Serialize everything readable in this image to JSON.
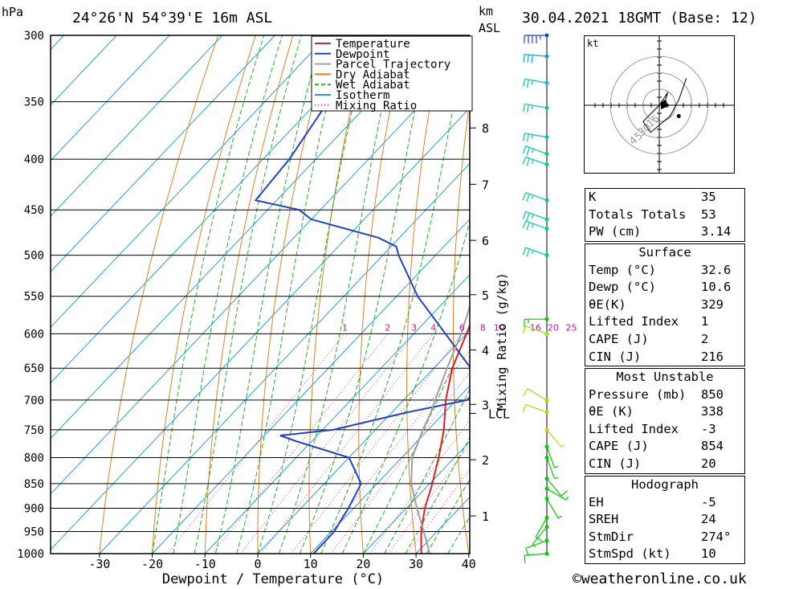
{
  "header": {
    "pressure_unit": "hPa",
    "height_unit_line1": "km",
    "height_unit_line2": "ASL",
    "location": "24°26'N  54°39'E  16m  ASL",
    "datetime": "30.04.2021  18GMT  (Base: 12)"
  },
  "chart_data": {
    "type": "line",
    "title": "",
    "xlabel": "Dewpoint / Temperature (°C)",
    "ylabel": "hPa",
    "xlim": [
      -40,
      40
    ],
    "ylim": [
      1000,
      300
    ],
    "y_scale": "log",
    "skew": "temperature isotherms skewed right with height",
    "grid": true,
    "x_ticks": [
      "-30",
      "-20",
      "-10",
      "0",
      "10",
      "20",
      "30",
      "40"
    ],
    "pressure_ticks": [
      "300",
      "350",
      "400",
      "450",
      "500",
      "550",
      "600",
      "650",
      "700",
      "750",
      "800",
      "850",
      "900",
      "950",
      "1000"
    ],
    "height_ticks": [
      {
        "p": 916,
        "label": "1"
      },
      {
        "p": 804,
        "label": "2"
      },
      {
        "p": 707,
        "label": "3"
      },
      {
        "p": 623,
        "label": "4"
      },
      {
        "p": 548,
        "label": "5"
      },
      {
        "p": 483,
        "label": "6"
      },
      {
        "p": 424,
        "label": "7"
      },
      {
        "p": 372,
        "label": "8"
      }
    ],
    "lcl": {
      "p": 722,
      "label": "LCL"
    },
    "mixing_ratio_label": "Mixing Ratio (g/kg)",
    "mixing_ratio_ticks": [
      "1",
      "2",
      "3",
      "4",
      "6",
      "8",
      "10",
      "16",
      "20",
      "25"
    ],
    "legend_placement": "top-right",
    "legend": [
      {
        "name": "Temperature",
        "color": "#e02020",
        "style": "solid"
      },
      {
        "name": "Dewpoint",
        "color": "#2040d0",
        "style": "solid"
      },
      {
        "name": "Parcel Trajectory",
        "color": "#a0a0a0",
        "style": "solid"
      },
      {
        "name": "Dry Adiabat",
        "color": "#e08020",
        "style": "solid"
      },
      {
        "name": "Wet Adiabat",
        "color": "#20b020",
        "style": "dashed"
      },
      {
        "name": "Isotherm",
        "color": "#20a0e0",
        "style": "solid"
      },
      {
        "name": "Mixing Ratio",
        "color": "#c040a0",
        "style": "dotted"
      }
    ],
    "series": [
      {
        "name": "Temperature",
        "color": "#e02020",
        "points": [
          [
            1000,
            31
          ],
          [
            950,
            27
          ],
          [
            900,
            23.5
          ],
          [
            850,
            20.5
          ],
          [
            800,
            17
          ],
          [
            750,
            13
          ],
          [
            700,
            8
          ],
          [
            650,
            3.5
          ],
          [
            600,
            0
          ],
          [
            550,
            -4
          ],
          [
            500,
            -9.5
          ],
          [
            470,
            -14
          ],
          [
            450,
            -16
          ],
          [
            430,
            -18.5
          ],
          [
            400,
            -23
          ],
          [
            350,
            -31
          ],
          [
            320,
            -36
          ],
          [
            300,
            -40
          ]
        ]
      },
      {
        "name": "Dewpoint",
        "color": "#2040d0",
        "points": [
          [
            1000,
            10.6
          ],
          [
            950,
            10.5
          ],
          [
            900,
            9
          ],
          [
            850,
            7
          ],
          [
            800,
            0
          ],
          [
            770,
            -13
          ],
          [
            760,
            -17
          ],
          [
            750,
            -8
          ],
          [
            720,
            3
          ],
          [
            700,
            12
          ],
          [
            670,
            12.5
          ],
          [
            650,
            7
          ],
          [
            600,
            -4
          ],
          [
            550,
            -16
          ],
          [
            500,
            -27
          ],
          [
            490,
            -29
          ],
          [
            480,
            -34
          ],
          [
            460,
            -50
          ],
          [
            450,
            -54
          ],
          [
            440,
            -64
          ],
          [
            400,
            -65
          ],
          [
            350,
            -68
          ],
          [
            320,
            -70
          ],
          [
            300,
            -75
          ]
        ]
      },
      {
        "name": "Parcel Trajectory",
        "color": "#a0a0a0",
        "points": [
          [
            1000,
            32.6
          ],
          [
            950,
            27.5
          ],
          [
            900,
            22
          ],
          [
            850,
            16.5
          ],
          [
            800,
            12
          ],
          [
            750,
            9
          ],
          [
            722,
            7.5
          ],
          [
            700,
            6
          ],
          [
            650,
            2.5
          ],
          [
            600,
            -1
          ],
          [
            550,
            -5.5
          ],
          [
            500,
            -11
          ],
          [
            450,
            -17.5
          ],
          [
            400,
            -25
          ],
          [
            350,
            -34
          ],
          [
            300,
            -45
          ]
        ]
      }
    ],
    "wind_profile": [
      {
        "p": 1000,
        "dir": 274,
        "kt": 10,
        "color": "#00cc00"
      },
      {
        "p": 970,
        "dir": 290,
        "kt": 10,
        "color": "#00cc00"
      },
      {
        "p": 940,
        "dir": 320,
        "kt": 5,
        "color": "#00cc00"
      },
      {
        "p": 920,
        "dir": 330,
        "kt": 10,
        "color": "#00cc00"
      },
      {
        "p": 880,
        "dir": 30,
        "kt": 5,
        "color": "#00cc00"
      },
      {
        "p": 860,
        "dir": 60,
        "kt": 5,
        "color": "#00cc00"
      },
      {
        "p": 840,
        "dir": 40,
        "kt": 10,
        "color": "#00cc00"
      },
      {
        "p": 800,
        "dir": 20,
        "kt": 5,
        "color": "#00cc00"
      },
      {
        "p": 780,
        "dir": 20,
        "kt": 5,
        "color": "#00cc00"
      },
      {
        "p": 750,
        "dir": 40,
        "kt": 5,
        "color": "#d0d000"
      },
      {
        "p": 720,
        "dir": 250,
        "kt": 10,
        "color": "#a0e000"
      },
      {
        "p": 700,
        "dir": 240,
        "kt": 10,
        "color": "#a0e000"
      },
      {
        "p": 600,
        "dir": 250,
        "kt": 10,
        "color": "#a0e000"
      },
      {
        "p": 580,
        "dir": 270,
        "kt": 15,
        "color": "#00cc00"
      },
      {
        "p": 500,
        "dir": 250,
        "kt": 25,
        "color": "#00c8a0"
      },
      {
        "p": 470,
        "dir": 250,
        "kt": 25,
        "color": "#00c8a0"
      },
      {
        "p": 460,
        "dir": 250,
        "kt": 25,
        "color": "#00c8a0"
      },
      {
        "p": 440,
        "dir": 250,
        "kt": 25,
        "color": "#00c8a0"
      },
      {
        "p": 405,
        "dir": 250,
        "kt": 25,
        "color": "#00c8a0"
      },
      {
        "p": 395,
        "dir": 250,
        "kt": 25,
        "color": "#00c8a0"
      },
      {
        "p": 380,
        "dir": 260,
        "kt": 25,
        "color": "#00c8a0"
      },
      {
        "p": 355,
        "dir": 260,
        "kt": 25,
        "color": "#00c8a0"
      },
      {
        "p": 335,
        "dir": 260,
        "kt": 25,
        "color": "#00c8a0"
      },
      {
        "p": 315,
        "dir": 265,
        "kt": 30,
        "color": "#00a0e0"
      },
      {
        "p": 300,
        "dir": 270,
        "kt": 45,
        "color": "#2040e0"
      }
    ]
  },
  "hodograph": {
    "unit_label": "kt",
    "ring_labels": [
      "15",
      "30",
      "45"
    ],
    "points": [
      [
        5,
        -3
      ],
      [
        8,
        -12
      ],
      [
        0,
        0
      ],
      [
        -15,
        15
      ],
      [
        -8,
        25
      ],
      [
        -2,
        20
      ],
      [
        10,
        10
      ],
      [
        18,
        -5
      ],
      [
        25,
        -25
      ]
    ]
  },
  "table": {
    "indices": [
      {
        "label": "K",
        "value": "35"
      },
      {
        "label": "Totals Totals",
        "value": "53"
      },
      {
        "label": "PW (cm)",
        "value": "3.14"
      }
    ],
    "surface": {
      "title": "Surface",
      "rows": [
        {
          "label": "Temp (°C)",
          "value": "32.6"
        },
        {
          "label": "Dewp (°C)",
          "value": "10.6"
        },
        {
          "label": "θE(K)",
          "value": "329"
        },
        {
          "label": "Lifted Index",
          "value": "1"
        },
        {
          "label": "CAPE (J)",
          "value": "2"
        },
        {
          "label": "CIN (J)",
          "value": "216"
        }
      ]
    },
    "most_unstable": {
      "title": "Most Unstable",
      "rows": [
        {
          "label": "Pressure (mb)",
          "value": "850"
        },
        {
          "label": "θE (K)",
          "value": "338"
        },
        {
          "label": "Lifted Index",
          "value": "-3"
        },
        {
          "label": "CAPE (J)",
          "value": "854"
        },
        {
          "label": "CIN (J)",
          "value": "20"
        }
      ]
    },
    "hodograph_stats": {
      "title": "Hodograph",
      "rows": [
        {
          "label": "EH",
          "value": "-5"
        },
        {
          "label": "SREH",
          "value": "24"
        },
        {
          "label": "StmDir",
          "value": "274°"
        },
        {
          "label": "StmSpd (kt)",
          "value": "10"
        }
      ]
    }
  },
  "footer": {
    "copyright": "©weatheronline.co.uk"
  }
}
